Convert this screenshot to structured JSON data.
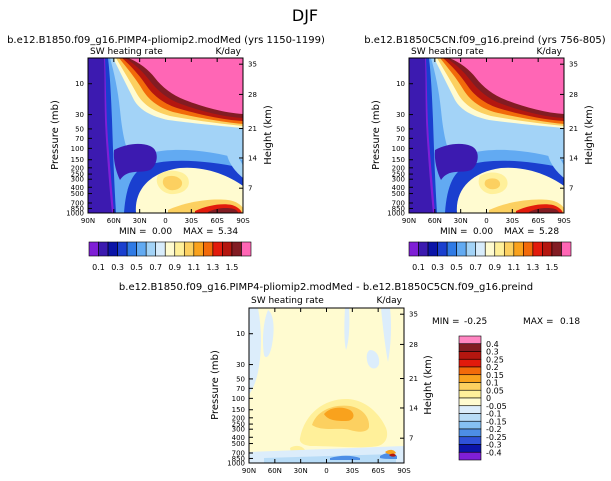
{
  "page_title": "DJF",
  "colors": {
    "ramp": [
      "#7f1fd6",
      "#3c1ab0",
      "#0b14a8",
      "#1a3fcf",
      "#2f7ae5",
      "#62aaf2",
      "#a3d3f7",
      "#d8ecfb",
      "#fffbd0",
      "#fff09a",
      "#fcd060",
      "#f9a21d",
      "#f26a0a",
      "#e21b0c",
      "#b4160f",
      "#821c23",
      "#ff66b5"
    ],
    "diff_ramp": [
      "#7f1fd6",
      "#0b14a8",
      "#2f52d8",
      "#4d8ee6",
      "#85c0f2",
      "#b8dcf7",
      "#dcedfb",
      "#fffbd0",
      "#fff09a",
      "#fcd060",
      "#f9a21d",
      "#f26a0a",
      "#e21b0c",
      "#b4160f",
      "#821c23",
      "#ff86c2"
    ]
  },
  "chart_data": [
    {
      "type": "heatmap",
      "title": "b.e12.B1850.f09_g16.PIMP4-pliomip2.modMed (yrs 1150-1199)",
      "left_label": "SW heating rate",
      "right_label": "K/day",
      "xlabel": "",
      "ylabel": "Pressure (mb)",
      "ylabel_right": "Height (km)",
      "xticks": [
        "90N",
        "60N",
        "30N",
        "0",
        "30S",
        "60S",
        "90S"
      ],
      "yticks": [
        "10",
        "30",
        "50",
        "70",
        "100",
        "150",
        "200",
        "250",
        "300",
        "400",
        "500",
        "700",
        "850",
        "1000"
      ],
      "height_ticks": [
        "35",
        "28",
        "21",
        "14",
        "7"
      ],
      "stats": {
        "min_label": "MIN =",
        "min": "0.00",
        "max_label": "MAX =",
        "max": "5.34"
      },
      "colorbar_labels": [
        "0.1",
        "0.3",
        "0.5",
        "0.7",
        "0.9",
        "1.1",
        "1.3",
        "1.5"
      ]
    },
    {
      "type": "heatmap",
      "title": "b.e12.B1850C5CN.f09_g16.preind (yrs 756-805)",
      "left_label": "SW heating rate",
      "right_label": "K/day",
      "xlabel": "",
      "ylabel": "Pressure (mb)",
      "ylabel_right": "Height (km)",
      "xticks": [
        "90N",
        "60N",
        "30N",
        "0",
        "30S",
        "60S",
        "90S"
      ],
      "yticks": [
        "10",
        "30",
        "50",
        "70",
        "100",
        "150",
        "200",
        "250",
        "300",
        "400",
        "500",
        "700",
        "850",
        "1000"
      ],
      "height_ticks": [
        "35",
        "28",
        "21",
        "14",
        "7"
      ],
      "stats": {
        "min_label": "MIN =",
        "min": "0.00",
        "max_label": "MAX =",
        "max": "5.28"
      },
      "colorbar_labels": [
        "0.1",
        "0.3",
        "0.5",
        "0.7",
        "0.9",
        "1.1",
        "1.3",
        "1.5"
      ]
    },
    {
      "type": "heatmap",
      "title": "b.e12.B1850.f09_g16.PIMP4-pliomip2.modMed - b.e12.B1850C5CN.f09_g16.preind",
      "left_label": "SW heating rate",
      "right_label": "K/day",
      "xlabel": "",
      "ylabel": "Pressure (mb)",
      "ylabel_right": "Height (km)",
      "xticks": [
        "90N",
        "60N",
        "30N",
        "0",
        "30S",
        "60S",
        "90S"
      ],
      "yticks": [
        "10",
        "30",
        "50",
        "70",
        "100",
        "150",
        "200",
        "250",
        "300",
        "400",
        "500",
        "700",
        "850",
        "1000"
      ],
      "height_ticks": [
        "35",
        "28",
        "21",
        "14",
        "7"
      ],
      "stats": {
        "min_label": "MIN =",
        "min": "-0.25",
        "max_label": "MAX =",
        "max": "0.18"
      },
      "colorbar_labels": [
        "0.4",
        "0.3",
        "0.25",
        "0.2",
        "0.15",
        "0.1",
        "0.05",
        "0",
        "-0.05",
        "-0.1",
        "-0.15",
        "-0.2",
        "-0.25",
        "-0.3",
        "-0.4"
      ]
    }
  ]
}
